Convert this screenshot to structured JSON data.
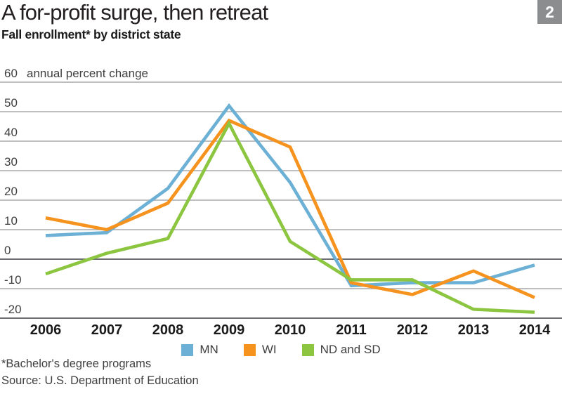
{
  "header": {
    "title": "A for-profit surge, then retreat",
    "badge": "2",
    "subtitle": "Fall enrollment* by district state"
  },
  "chart_data": {
    "type": "line",
    "title": "A for-profit surge, then retreat",
    "subtitle": "Fall enrollment* by district state",
    "unit_label": "annual percent change",
    "x": [
      2006,
      2007,
      2008,
      2009,
      2010,
      2011,
      2012,
      2013,
      2014
    ],
    "series": [
      {
        "name": "MN",
        "color": "#6cb0d5",
        "values": [
          8,
          9,
          24,
          52,
          26,
          -9,
          -8,
          -8,
          -2
        ]
      },
      {
        "name": "WI",
        "color": "#f6921e",
        "values": [
          14,
          10,
          19,
          47,
          38,
          -8,
          -12,
          -4,
          -13
        ]
      },
      {
        "name": "ND and SD",
        "color": "#8cc640",
        "values": [
          -5,
          2,
          7,
          46,
          6,
          -7,
          -7,
          -17,
          -18
        ]
      }
    ],
    "yticks": [
      60,
      50,
      40,
      30,
      20,
      10,
      0,
      -10,
      -20
    ],
    "ylim": [
      -20,
      60
    ],
    "grid": true,
    "grid_color": "#a7a9ac",
    "zero_line_color": "#6d6e71",
    "legend_position": "bottom"
  },
  "footnotes": [
    "*Bachelor's degree programs",
    "Source: U.S. Department of Education"
  ]
}
